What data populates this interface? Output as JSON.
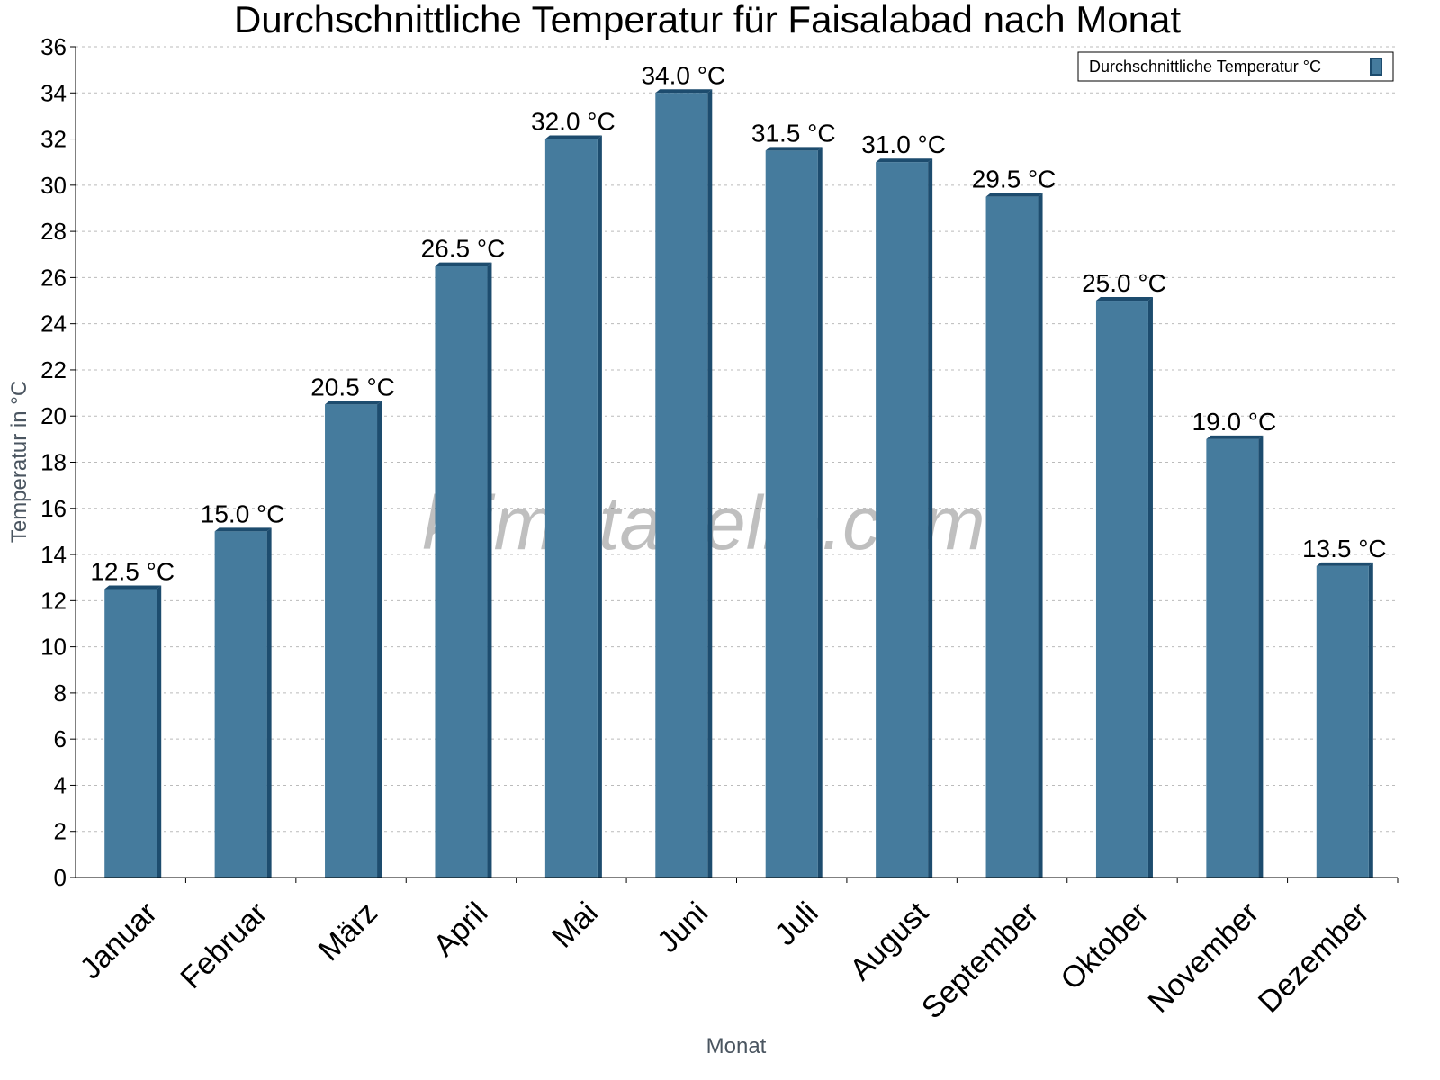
{
  "chart_data": {
    "type": "bar",
    "title": "Durchschnittliche Temperatur für Faisalabad nach Monat",
    "xlabel": "Monat",
    "ylabel": "Temperatur in °C",
    "categories": [
      "Januar",
      "Februar",
      "März",
      "April",
      "Mai",
      "Juni",
      "Juli",
      "August",
      "September",
      "Oktober",
      "November",
      "Dezember"
    ],
    "series": [
      {
        "name": "Durchschnittliche Temperatur °C",
        "values": [
          12.5,
          15.0,
          20.5,
          26.5,
          32.0,
          34.0,
          31.5,
          31.0,
          29.5,
          25.0,
          19.0,
          13.5
        ]
      }
    ],
    "data_labels": [
      "12.5 °C",
      "15.0 °C",
      "20.5 °C",
      "26.5 °C",
      "32.0 °C",
      "34.0 °C",
      "31.5 °C",
      "31.0 °C",
      "29.5 °C",
      "25.0 °C",
      "19.0 °C",
      "13.5 °C"
    ],
    "ylim": [
      0,
      36
    ],
    "yticks": [
      0,
      2,
      4,
      6,
      8,
      10,
      12,
      14,
      16,
      18,
      20,
      22,
      24,
      26,
      28,
      30,
      32,
      34,
      36
    ],
    "grid": true,
    "legend_position": "top-right",
    "watermark": "klimatabelle.com",
    "colors": {
      "bar_front": "#457b9d",
      "bar_edge": "#1d4c6e",
      "axis_title": "#4a5560"
    }
  }
}
